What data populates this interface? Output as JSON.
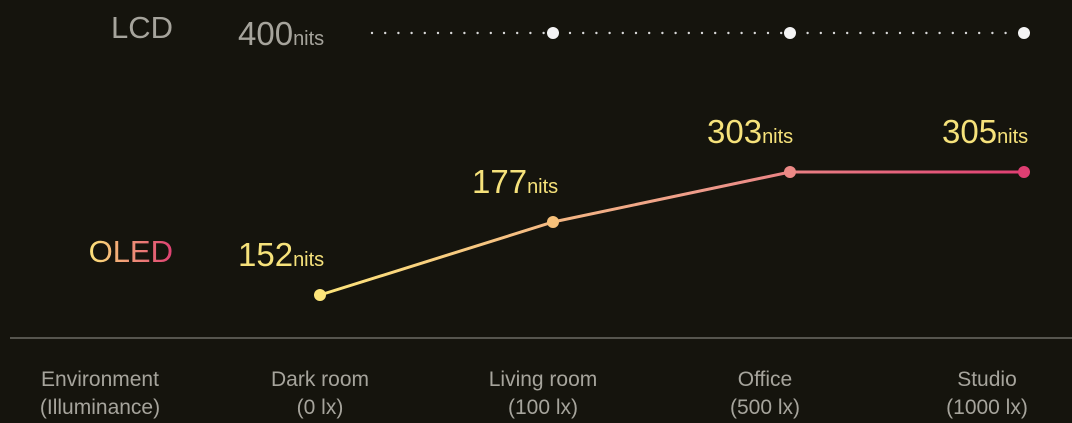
{
  "colors": {
    "background": "#15140d",
    "lcd_text": "#a6a49c",
    "lcd_dot": "#f4f4f4",
    "oled_low": "#fde57a",
    "oled_mid": "#ee9a8a",
    "oled_high": "#df3e72",
    "value_text": "#f6e27b",
    "axis_text": "#a6a49c",
    "divider": "#6c6b64"
  },
  "chart_data": {
    "type": "line",
    "categories": [
      {
        "name": "Dark room",
        "sub": "(0 lx)"
      },
      {
        "name": "Living room",
        "sub": "(100 lx)"
      },
      {
        "name": "Office",
        "sub": "(500 lx)"
      },
      {
        "name": "Studio",
        "sub": "(1000 lx)"
      }
    ],
    "axis_header": {
      "line1": "Environment",
      "line2": "(Illuminance)"
    },
    "unit": "nits",
    "series": [
      {
        "name": "LCD",
        "values": [
          400,
          400,
          400,
          400
        ],
        "value_labels": [
          null,
          null,
          null,
          null
        ],
        "row_label": "400",
        "style": "dotted"
      },
      {
        "name": "OLED",
        "values": [
          152,
          177,
          303,
          305
        ],
        "value_labels": [
          "152",
          "177",
          "303",
          "305"
        ],
        "style": "gradient"
      }
    ]
  }
}
